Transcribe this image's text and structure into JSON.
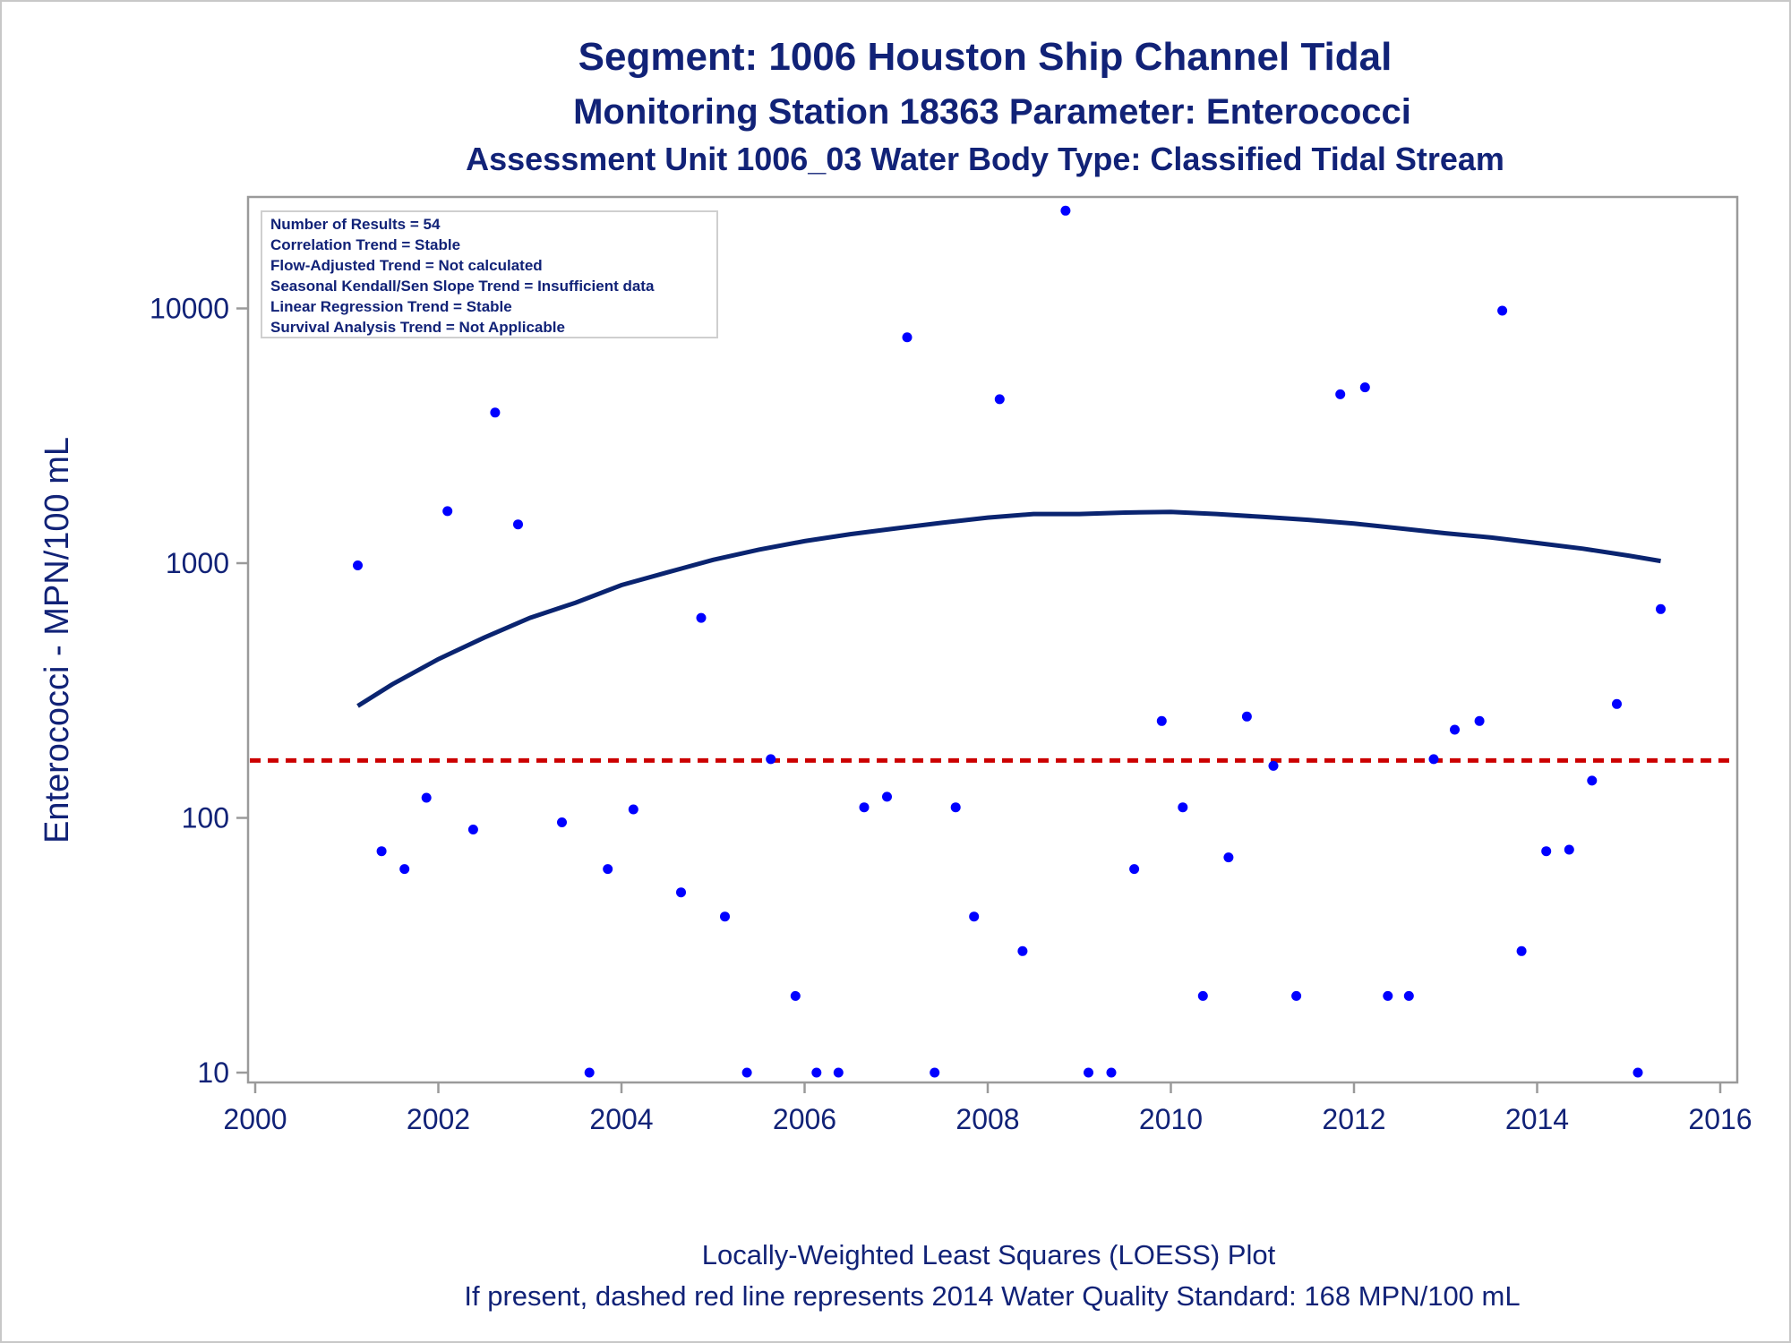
{
  "titles": {
    "line1": "Segment: 1006  Houston Ship Channel Tidal",
    "line2": "Monitoring Station 18363 Parameter: Enterococci",
    "line3": "Assessment Unit 1006_03   Water Body Type: Classified Tidal Stream"
  },
  "stats_box": [
    "Number of Results = 54",
    "Correlation Trend = Stable",
    "Flow-Adjusted Trend = Not calculated",
    "Seasonal Kendall/Sen Slope Trend = Insufficient data",
    "Linear Regression Trend = Stable",
    "Survival Analysis Trend = Not Applicable"
  ],
  "footer": {
    "line1": "Locally-Weighted Least Squares (LOESS) Plot",
    "line2": "If present, dashed red line represents 2014 Water Quality Standard: 168 MPN/100 mL"
  },
  "colors": {
    "text": "#112277",
    "points": "#0000ff",
    "loess": "#0a2470",
    "standard": "#cc0000",
    "axis": "#9a9a9a"
  },
  "chart_data": {
    "type": "scatter",
    "ylabel": "Enterococci - MPN/100 mL",
    "y_scale": "log",
    "xlim": [
      2000,
      2016
    ],
    "ylim_log": [
      10,
      27000
    ],
    "x_ticks": [
      "2000",
      "2002",
      "2004",
      "2006",
      "2008",
      "2010",
      "2012",
      "2014",
      "2016"
    ],
    "y_ticks": [
      "10",
      "100",
      "1000",
      "10000"
    ],
    "standard_value": 168,
    "points": [
      {
        "x": 2001.12,
        "y": 980
      },
      {
        "x": 2001.38,
        "y": 74
      },
      {
        "x": 2001.63,
        "y": 63
      },
      {
        "x": 2001.87,
        "y": 120
      },
      {
        "x": 2002.1,
        "y": 1600
      },
      {
        "x": 2002.38,
        "y": 90
      },
      {
        "x": 2002.62,
        "y": 3900
      },
      {
        "x": 2002.87,
        "y": 1420
      },
      {
        "x": 2003.35,
        "y": 96
      },
      {
        "x": 2003.65,
        "y": 10
      },
      {
        "x": 2003.85,
        "y": 63
      },
      {
        "x": 2004.13,
        "y": 108
      },
      {
        "x": 2004.65,
        "y": 51
      },
      {
        "x": 2004.87,
        "y": 610
      },
      {
        "x": 2005.13,
        "y": 41
      },
      {
        "x": 2005.37,
        "y": 10
      },
      {
        "x": 2005.63,
        "y": 170
      },
      {
        "x": 2005.9,
        "y": 20
      },
      {
        "x": 2006.13,
        "y": 10
      },
      {
        "x": 2006.37,
        "y": 10
      },
      {
        "x": 2006.65,
        "y": 110
      },
      {
        "x": 2006.9,
        "y": 121
      },
      {
        "x": 2007.12,
        "y": 7700
      },
      {
        "x": 2007.42,
        "y": 10
      },
      {
        "x": 2007.65,
        "y": 110
      },
      {
        "x": 2007.85,
        "y": 41
      },
      {
        "x": 2008.13,
        "y": 4400
      },
      {
        "x": 2008.38,
        "y": 30
      },
      {
        "x": 2008.85,
        "y": 24200
      },
      {
        "x": 2009.1,
        "y": 10
      },
      {
        "x": 2009.35,
        "y": 10
      },
      {
        "x": 2009.6,
        "y": 63
      },
      {
        "x": 2009.9,
        "y": 240
      },
      {
        "x": 2010.13,
        "y": 110
      },
      {
        "x": 2010.35,
        "y": 20
      },
      {
        "x": 2010.63,
        "y": 70
      },
      {
        "x": 2010.83,
        "y": 250
      },
      {
        "x": 2011.12,
        "y": 160
      },
      {
        "x": 2011.37,
        "y": 20
      },
      {
        "x": 2011.85,
        "y": 4600
      },
      {
        "x": 2012.12,
        "y": 4900
      },
      {
        "x": 2012.37,
        "y": 20
      },
      {
        "x": 2012.6,
        "y": 20
      },
      {
        "x": 2012.87,
        "y": 170
      },
      {
        "x": 2013.1,
        "y": 222
      },
      {
        "x": 2013.37,
        "y": 240
      },
      {
        "x": 2013.62,
        "y": 9800
      },
      {
        "x": 2013.83,
        "y": 30
      },
      {
        "x": 2014.1,
        "y": 74
      },
      {
        "x": 2014.35,
        "y": 75
      },
      {
        "x": 2014.6,
        "y": 140
      },
      {
        "x": 2014.87,
        "y": 280
      },
      {
        "x": 2015.1,
        "y": 10
      },
      {
        "x": 2015.35,
        "y": 660
      }
    ],
    "loess": [
      {
        "x": 2001.12,
        "y": 275
      },
      {
        "x": 2001.5,
        "y": 335
      },
      {
        "x": 2002.0,
        "y": 420
      },
      {
        "x": 2002.5,
        "y": 510
      },
      {
        "x": 2003.0,
        "y": 610
      },
      {
        "x": 2003.5,
        "y": 700
      },
      {
        "x": 2004.0,
        "y": 820
      },
      {
        "x": 2004.5,
        "y": 920
      },
      {
        "x": 2005.0,
        "y": 1030
      },
      {
        "x": 2005.5,
        "y": 1130
      },
      {
        "x": 2006.0,
        "y": 1220
      },
      {
        "x": 2006.5,
        "y": 1300
      },
      {
        "x": 2007.0,
        "y": 1370
      },
      {
        "x": 2007.5,
        "y": 1440
      },
      {
        "x": 2008.0,
        "y": 1510
      },
      {
        "x": 2008.5,
        "y": 1560
      },
      {
        "x": 2009.0,
        "y": 1560
      },
      {
        "x": 2009.5,
        "y": 1580
      },
      {
        "x": 2010.0,
        "y": 1590
      },
      {
        "x": 2010.5,
        "y": 1560
      },
      {
        "x": 2011.0,
        "y": 1520
      },
      {
        "x": 2011.5,
        "y": 1480
      },
      {
        "x": 2012.0,
        "y": 1430
      },
      {
        "x": 2012.5,
        "y": 1370
      },
      {
        "x": 2013.0,
        "y": 1310
      },
      {
        "x": 2013.5,
        "y": 1260
      },
      {
        "x": 2014.0,
        "y": 1200
      },
      {
        "x": 2014.5,
        "y": 1140
      },
      {
        "x": 2015.0,
        "y": 1070
      },
      {
        "x": 2015.35,
        "y": 1020
      }
    ]
  }
}
